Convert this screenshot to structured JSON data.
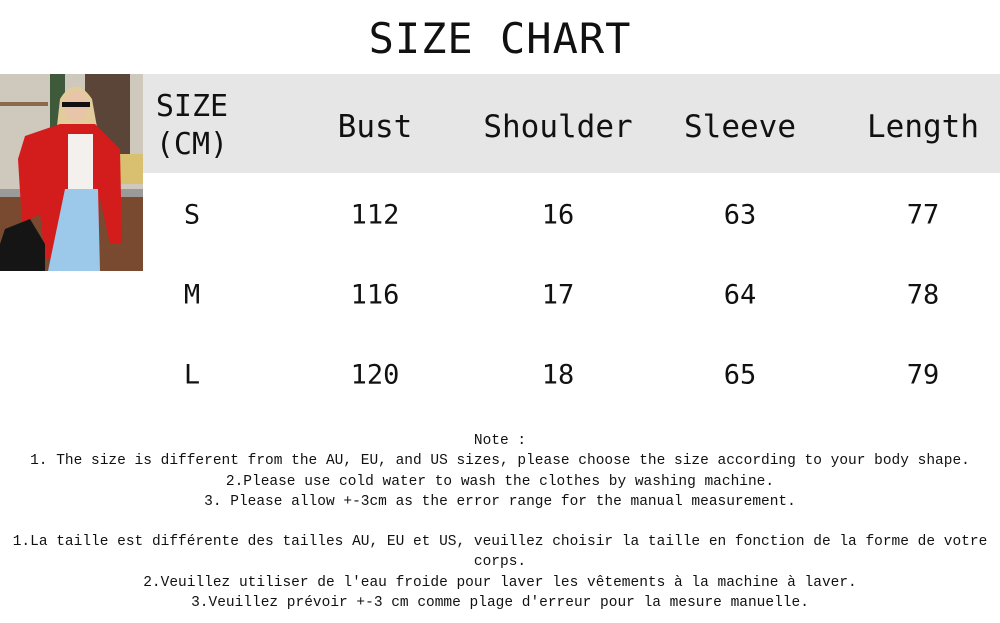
{
  "title": "SIZE CHART",
  "photo": {
    "icon": "model-photo-red-blazer",
    "colors": {
      "blazer": "#d31c1c",
      "jeans": "#9cc8ea",
      "background": "#8a5a3c"
    }
  },
  "header_bg": "#e6e6e6",
  "table": {
    "headers": [
      "SIZE",
      "(CM)",
      "Bust",
      "Shoulder",
      "Sleeve",
      "Length"
    ],
    "rows": [
      [
        "S",
        "112",
        "16",
        "63",
        "77"
      ],
      [
        "M",
        "116",
        "17",
        "64",
        "78"
      ],
      [
        "L",
        "120",
        "18",
        "65",
        "79"
      ]
    ]
  },
  "notes": {
    "heading": "Note :",
    "en": [
      "1. The size is different from the AU, EU, and US sizes, please choose the size according to your body shape.",
      "2.Please use cold water to wash the clothes by washing machine.",
      "3. Please allow +-3cm as the error range for the manual measurement."
    ],
    "fr": [
      "1.La taille est différente des tailles AU, EU et US, veuillez choisir la taille en fonction de la forme de votre",
      "corps.",
      "2.Veuillez utiliser de l'eau froide pour laver les vêtements à la machine à laver.",
      "3.Veuillez prévoir +-3 cm comme plage d'erreur pour la mesure manuelle."
    ]
  }
}
